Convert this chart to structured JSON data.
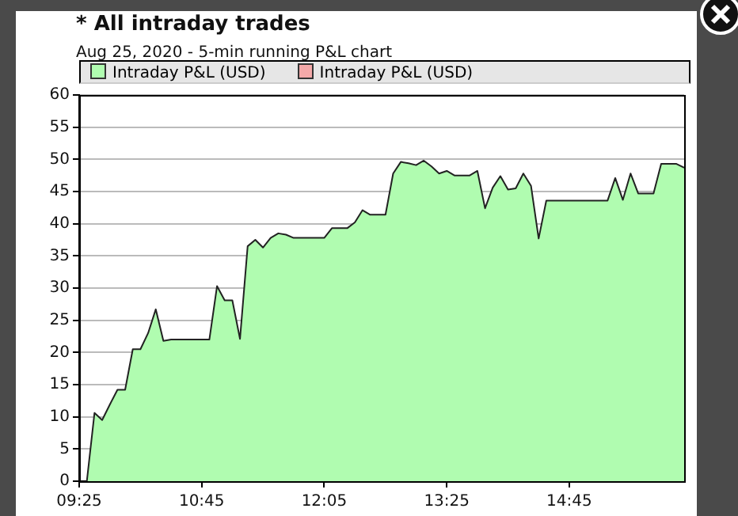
{
  "chart_data": {
    "type": "area",
    "title": "* All intraday trades",
    "subtitle": "Aug 25, 2020 - 5-min running P&L chart",
    "x": [
      9.5,
      9.5833,
      9.6667,
      9.75,
      9.8333,
      9.9167,
      10,
      10.0833,
      10.1667,
      10.25,
      10.3333,
      10.4167,
      10.5,
      10.5833,
      10.6667,
      10.75,
      10.8333,
      10.9167,
      11,
      11.0833,
      11.1667,
      11.25,
      11.3333,
      11.4167,
      11.5,
      11.5833,
      11.6667,
      11.75,
      11.8333,
      11.9167,
      12,
      12.0833,
      12.1667,
      12.25,
      12.3333,
      12.4167,
      12.5,
      12.5833,
      12.6667,
      12.75,
      12.8333,
      12.9167,
      13,
      13.0833,
      13.1667,
      13.25,
      13.3333,
      13.4167,
      13.5,
      13.5833,
      13.6667,
      13.75,
      13.8333,
      13.9167,
      14,
      14.0833,
      14.1667,
      14.25,
      14.3333,
      14.4167,
      14.5,
      14.5833,
      14.6667,
      14.75,
      14.8333,
      14.9167,
      15,
      15.0833,
      15.1667,
      15.25,
      15.3333,
      15.4167,
      15.5,
      15.5833,
      15.6667,
      15.75,
      15.8333,
      15.9167,
      16
    ],
    "series": [
      {
        "name": "Intraday P&L (USD)",
        "color": "#b0fcb0",
        "values": [
          0,
          10.6,
          9.5,
          11.9,
          14.2,
          14.2,
          20.5,
          20.5,
          23,
          26.7,
          21.8,
          22,
          22,
          22,
          22,
          22,
          22,
          30.3,
          28.1,
          28.1,
          22.1,
          36.5,
          37.5,
          36.3,
          37.8,
          38.5,
          38.3,
          37.8,
          37.8,
          37.8,
          37.8,
          37.8,
          39.3,
          39.3,
          39.3,
          40.2,
          42.1,
          41.4,
          41.4,
          41.4,
          47.8,
          49.6,
          49.4,
          49.1,
          49.8,
          48.9,
          47.8,
          48.2,
          47.5,
          47.5,
          47.5,
          48.2,
          42.4,
          45.6,
          47.4,
          45.3,
          45.5,
          47.8,
          45.9,
          37.7,
          43.6,
          43.6,
          43.6,
          43.6,
          43.6,
          43.6,
          43.6,
          43.6,
          43.6,
          47.1,
          43.7,
          47.8,
          44.7,
          44.7,
          44.7,
          49.3,
          49.3,
          49.3,
          48.7
        ]
      },
      {
        "name": "Intraday P&L (USD)",
        "color": "#f4a9a9",
        "values": [
          null,
          null,
          null,
          null,
          null,
          null,
          null,
          null,
          null,
          null,
          null,
          null,
          null,
          null,
          null,
          null,
          null,
          null,
          null,
          null,
          null,
          null,
          null,
          null,
          null,
          null,
          null,
          null,
          null,
          null,
          null,
          null,
          null,
          null,
          null,
          null,
          null,
          null,
          null,
          null,
          null,
          null,
          null,
          null,
          null,
          null,
          null,
          null,
          null,
          null,
          null,
          null,
          null,
          null,
          null,
          null,
          null,
          null,
          null,
          null,
          null,
          null,
          null,
          null,
          null,
          null,
          null,
          null,
          null,
          null,
          null,
          null,
          null,
          null,
          null,
          null,
          null,
          null,
          null
        ]
      }
    ],
    "xlim": [
      9.4167,
      16
    ],
    "xticks": [
      {
        "value": 9.4167,
        "label": "09:25"
      },
      {
        "value": 10.75,
        "label": "10:45"
      },
      {
        "value": 12.0833,
        "label": "12:05"
      },
      {
        "value": 13.4167,
        "label": "13:25"
      },
      {
        "value": 14.75,
        "label": "14:45"
      }
    ],
    "ylim": [
      0,
      60
    ],
    "yticks": [
      0,
      5,
      10,
      15,
      20,
      25,
      30,
      35,
      40,
      45,
      50,
      55,
      60
    ],
    "grid": "y",
    "legend": "top",
    "marker": "none",
    "line_style": "solid"
  }
}
